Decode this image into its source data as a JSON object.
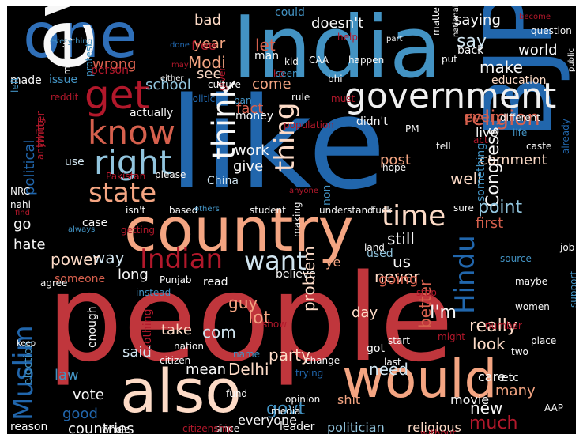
{
  "words": [
    {
      "text": "people",
      "color": "#c0363c"
    },
    {
      "text": "like",
      "color": "#2166ac"
    },
    {
      "text": "India",
      "color": "#4393c3"
    },
    {
      "text": "one",
      "color": "#2f6fb8"
    },
    {
      "text": "even",
      "color": "#f7f7f7"
    },
    {
      "text": "country",
      "color": "#f4a582"
    },
    {
      "text": "BJP",
      "color": "#2166ac"
    },
    {
      "text": "also",
      "color": "#fddbc7"
    },
    {
      "text": "would",
      "color": "#f4a582"
    },
    {
      "text": "government",
      "color": "#f0f0f0"
    },
    {
      "text": "get",
      "color": "#b2182b"
    },
    {
      "text": "know",
      "color": "#d6604d"
    },
    {
      "text": "right",
      "color": "#92c5de"
    },
    {
      "text": "think",
      "color": "#f7f7f7"
    },
    {
      "text": "thing",
      "color": "#fddbc7"
    },
    {
      "text": "state",
      "color": "#f4a582"
    },
    {
      "text": "time",
      "color": "#fddbc7"
    },
    {
      "text": "Indian",
      "color": "#b2182b"
    },
    {
      "text": "want",
      "color": "#d1e5f0"
    },
    {
      "text": "Hindu",
      "color": "#2166ac"
    },
    {
      "text": "Muslim",
      "color": "#2166ac"
    },
    {
      "text": "religion",
      "color": "#d6604d"
    },
    {
      "text": "Modi",
      "color": "#f4a582"
    },
    {
      "text": "say",
      "color": "#d1e5f0"
    },
    {
      "text": "make",
      "color": "#f7f7f7"
    },
    {
      "text": "world",
      "color": "#f7f7f7"
    },
    {
      "text": "saying",
      "color": "#f7f7f7"
    },
    {
      "text": "year",
      "color": "#f4a582"
    },
    {
      "text": "free",
      "color": "#b2182b"
    },
    {
      "text": "bad",
      "color": "#fddbc7"
    },
    {
      "text": "doesn't",
      "color": "#f7f7f7"
    },
    {
      "text": "could",
      "color": "#4393c3"
    },
    {
      "text": "see",
      "color": "#fddbc7"
    },
    {
      "text": "let",
      "color": "#d6604d"
    },
    {
      "text": "wrong",
      "color": "#d6604d"
    },
    {
      "text": "school",
      "color": "#92c5de"
    },
    {
      "text": "issue",
      "color": "#4393c3"
    },
    {
      "text": "made",
      "color": "#f7f7f7"
    },
    {
      "text": "come",
      "color": "#f4a582"
    },
    {
      "text": "fact",
      "color": "#d6604d"
    },
    {
      "text": "education",
      "color": "#fddbc7"
    },
    {
      "text": "back",
      "color": "#f7f7f7"
    },
    {
      "text": "put",
      "color": "#f7f7f7"
    },
    {
      "text": "man",
      "color": "#f7f7f7"
    },
    {
      "text": "person",
      "color": "#b2182b"
    },
    {
      "text": "actually",
      "color": "#f7f7f7"
    },
    {
      "text": "money",
      "color": "#f7f7f7"
    },
    {
      "text": "work",
      "color": "#f7f7f7"
    },
    {
      "text": "give",
      "color": "#f7f7f7"
    },
    {
      "text": "China",
      "color": "#d1e5f0"
    },
    {
      "text": "use",
      "color": "#d1e5f0"
    },
    {
      "text": "well",
      "color": "#fddbc7"
    },
    {
      "text": "comment",
      "color": "#fddbc7"
    },
    {
      "text": "Congress",
      "color": "#f7f7f7"
    },
    {
      "text": "point",
      "color": "#92c5de"
    },
    {
      "text": "first",
      "color": "#d6604d"
    },
    {
      "text": "every",
      "color": "#d6604d"
    },
    {
      "text": "didn't",
      "color": "#f7f7f7"
    },
    {
      "text": "live",
      "color": "#f7f7f7"
    },
    {
      "text": "post",
      "color": "#f4a582"
    },
    {
      "text": "still",
      "color": "#f7f7f7"
    },
    {
      "text": "us",
      "color": "#f7f7f7"
    },
    {
      "text": "never",
      "color": "#fddbc7"
    },
    {
      "text": "going",
      "color": "#d6604d"
    },
    {
      "text": "way",
      "color": "#d1e5f0"
    },
    {
      "text": "power",
      "color": "#fddbc7"
    },
    {
      "text": "go",
      "color": "#f7f7f7"
    },
    {
      "text": "hate",
      "color": "#f7f7f7"
    },
    {
      "text": "case",
      "color": "#f7f7f7"
    },
    {
      "text": "long",
      "color": "#f7f7f7"
    },
    {
      "text": "read",
      "color": "#f7f7f7"
    },
    {
      "text": "believe",
      "color": "#f7f7f7"
    },
    {
      "text": "guy",
      "color": "#f4a582"
    },
    {
      "text": "lot",
      "color": "#f4a582"
    },
    {
      "text": "take",
      "color": "#fddbc7"
    },
    {
      "text": "com",
      "color": "#d1e5f0"
    },
    {
      "text": "mean",
      "color": "#f7f7f7"
    },
    {
      "text": "Delhi",
      "color": "#fddbc7"
    },
    {
      "text": "said",
      "color": "#d1e5f0"
    },
    {
      "text": "party",
      "color": "#fddbc7"
    },
    {
      "text": "problem",
      "color": "#fddbc7"
    },
    {
      "text": "day",
      "color": "#fddbc7"
    },
    {
      "text": "better",
      "color": "#d6604d"
    },
    {
      "text": "I'm",
      "color": "#f7f7f7"
    },
    {
      "text": "look",
      "color": "#fddbc7"
    },
    {
      "text": "really",
      "color": "#fddbc7"
    },
    {
      "text": "need",
      "color": "#d1e5f0"
    },
    {
      "text": "vote",
      "color": "#f7f7f7"
    },
    {
      "text": "law",
      "color": "#4393c3"
    },
    {
      "text": "good",
      "color": "#2166ac"
    },
    {
      "text": "govt",
      "color": "#4393c3"
    },
    {
      "text": "countries",
      "color": "#f7f7f7"
    },
    {
      "text": "reason",
      "color": "#f7f7f7"
    },
    {
      "text": "everyone",
      "color": "#f7f7f7"
    },
    {
      "text": "leader",
      "color": "#f7f7f7"
    },
    {
      "text": "politician",
      "color": "#92c5de"
    },
    {
      "text": "religious",
      "color": "#fddbc7"
    },
    {
      "text": "much",
      "color": "#b2182b"
    },
    {
      "text": "new",
      "color": "#f7f7f7"
    },
    {
      "text": "many",
      "color": "#f4a582"
    },
    {
      "text": "care",
      "color": "#f7f7f7"
    },
    {
      "text": "etc",
      "color": "#f7f7f7"
    },
    {
      "text": "movie",
      "color": "#f7f7f7"
    },
    {
      "text": "shit",
      "color": "#f4a582"
    },
    {
      "text": "got",
      "color": "#f7f7f7"
    },
    {
      "text": "nothing",
      "color": "#b2182b"
    },
    {
      "text": "enough",
      "color": "#f7f7f7"
    },
    {
      "text": "political",
      "color": "#2166ac"
    },
    {
      "text": "twitter",
      "color": "#b2182b"
    },
    {
      "text": "election",
      "color": "#4393c3"
    },
    {
      "text": "someone",
      "color": "#d6604d"
    },
    {
      "text": "support",
      "color": "#4393c3"
    },
    {
      "text": "Pakistan",
      "color": "#b2182b"
    },
    {
      "text": "NRC",
      "color": "#f7f7f7"
    },
    {
      "text": "nahi",
      "color": "#f7f7f7"
    },
    {
      "text": "please",
      "color": "#f7f7f7"
    },
    {
      "text": "isn't",
      "color": "#f7f7f7"
    },
    {
      "text": "based",
      "color": "#f7f7f7"
    },
    {
      "text": "others",
      "color": "#4393c3"
    },
    {
      "text": "student",
      "color": "#f7f7f7"
    },
    {
      "text": "understand",
      "color": "#f7f7f7"
    },
    {
      "text": "fuck",
      "color": "#f7f7f7"
    },
    {
      "text": "sure",
      "color": "#f7f7f7"
    },
    {
      "text": "job",
      "color": "#f7f7f7"
    },
    {
      "text": "land",
      "color": "#f7f7f7"
    },
    {
      "text": "ye",
      "color": "#f4a582"
    },
    {
      "text": "used",
      "color": "#92c5de"
    },
    {
      "text": "maybe",
      "color": "#f7f7f7"
    },
    {
      "text": "women",
      "color": "#f7f7f7"
    },
    {
      "text": "Punjab",
      "color": "#f7f7f7"
    },
    {
      "text": "show",
      "color": "#b2182b"
    },
    {
      "text": "stop",
      "color": "#b2182b"
    },
    {
      "text": "might",
      "color": "#b2182b"
    },
    {
      "text": "number",
      "color": "#b2182b"
    },
    {
      "text": "two",
      "color": "#f7f7f7"
    },
    {
      "text": "place",
      "color": "#f7f7f7"
    },
    {
      "text": "start",
      "color": "#f7f7f7"
    },
    {
      "text": "last",
      "color": "#f7f7f7"
    },
    {
      "text": "change",
      "color": "#f7f7f7"
    },
    {
      "text": "citizen",
      "color": "#f7f7f7"
    },
    {
      "text": "nation",
      "color": "#f7f7f7"
    },
    {
      "text": "name",
      "color": "#4393c3"
    },
    {
      "text": "trying",
      "color": "#2166ac"
    },
    {
      "text": "opinion",
      "color": "#f7f7f7"
    },
    {
      "text": "fund",
      "color": "#f7f7f7"
    },
    {
      "text": "media",
      "color": "#f7f7f7"
    },
    {
      "text": "since",
      "color": "#f7f7f7"
    },
    {
      "text": "citizenship",
      "color": "#b2182b"
    },
    {
      "text": "whole",
      "color": "#f7f7f7"
    },
    {
      "text": "without",
      "color": "#b2182b"
    },
    {
      "text": "AAP",
      "color": "#f7f7f7"
    },
    {
      "text": "matter",
      "color": "#f7f7f7"
    },
    {
      "text": "national",
      "color": "#f7f7f7"
    },
    {
      "text": "become",
      "color": "#b2182b"
    },
    {
      "text": "part",
      "color": "#f7f7f7"
    },
    {
      "text": "question",
      "color": "#f7f7f7"
    },
    {
      "text": "public",
      "color": "#f7f7f7"
    },
    {
      "text": "help",
      "color": "#b2182b"
    },
    {
      "text": "happen",
      "color": "#f7f7f7"
    },
    {
      "text": "bhi",
      "color": "#f7f7f7"
    },
    {
      "text": "CAA",
      "color": "#f7f7f7"
    },
    {
      "text": "kid",
      "color": "#f7f7f7"
    },
    {
      "text": "ko",
      "color": "#b2182b"
    },
    {
      "text": "seem",
      "color": "#4393c3"
    },
    {
      "text": "rule",
      "color": "#f7f7f7"
    },
    {
      "text": "must",
      "color": "#b2182b"
    },
    {
      "text": "given",
      "color": "#b2182b"
    },
    {
      "text": "culture",
      "color": "#f7f7f7"
    },
    {
      "text": "politics",
      "color": "#2166ac"
    },
    {
      "text": "ban",
      "color": "#4393c3"
    },
    {
      "text": "population",
      "color": "#b2182b"
    },
    {
      "text": "PM",
      "color": "#f7f7f7"
    },
    {
      "text": "different",
      "color": "#f7f7f7"
    },
    {
      "text": "life",
      "color": "#4393c3"
    },
    {
      "text": "act",
      "color": "#b2182b"
    },
    {
      "text": "tell",
      "color": "#f7f7f7"
    },
    {
      "text": "hope",
      "color": "#f7f7f7"
    },
    {
      "text": "caste",
      "color": "#f7f7f7"
    },
    {
      "text": "already",
      "color": "#2166ac"
    },
    {
      "text": "something",
      "color": "#4393c3"
    },
    {
      "text": "non",
      "color": "#4393c3"
    },
    {
      "text": "anyone",
      "color": "#b2182b"
    },
    {
      "text": "making",
      "color": "#f7f7f7"
    },
    {
      "text": "source",
      "color": "#4393c3"
    },
    {
      "text": "agree",
      "color": "#f7f7f7"
    },
    {
      "text": "getting",
      "color": "#b2182b"
    },
    {
      "text": "always",
      "color": "#4393c3"
    },
    {
      "text": "find",
      "color": "#b2182b"
    },
    {
      "text": "keep",
      "color": "#f7f7f7"
    },
    {
      "text": "instead",
      "color": "#4393c3"
    },
    {
      "text": "either",
      "color": "#f7f7f7"
    },
    {
      "text": "may",
      "color": "#b2182b"
    },
    {
      "text": "done",
      "color": "#2166ac"
    },
    {
      "text": "protest",
      "color": "#4393c3"
    },
    {
      "text": "left",
      "color": "#4393c3"
    },
    {
      "text": "everything",
      "color": "#4393c3"
    },
    {
      "text": "majority",
      "color": "#f7f7f7"
    },
    {
      "text": "reddit",
      "color": "#b2182b"
    },
    {
      "text": "anything",
      "color": "#b2182b"
    }
  ]
}
